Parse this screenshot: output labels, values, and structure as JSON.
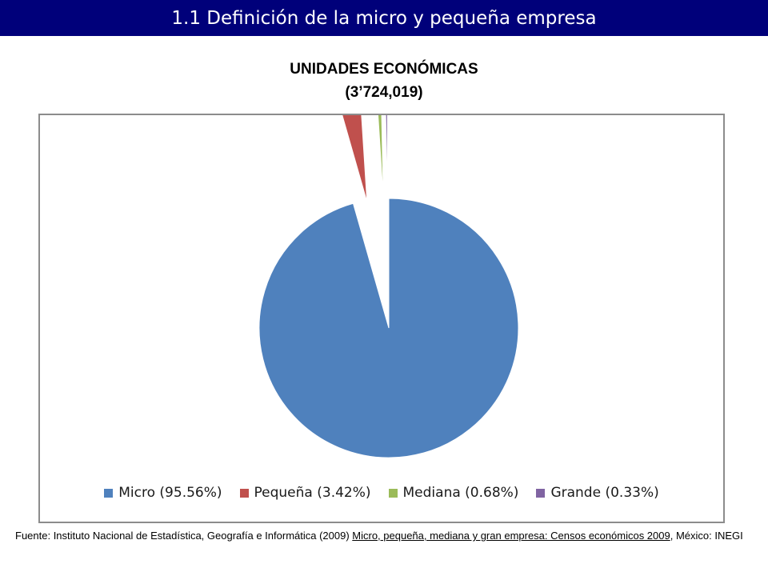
{
  "header": {
    "title": "1.1 Definición de la micro y pequeña empresa"
  },
  "chart_data": {
    "type": "pie",
    "title": "UNIDADES ECONÓMICAS",
    "subtitle": "(3’724,019)",
    "categories": [
      "Micro",
      "Pequeña",
      "Mediana",
      "Grande"
    ],
    "values": [
      95.56,
      3.42,
      0.68,
      0.33
    ],
    "unit": "%",
    "colors": [
      "#4f81bd",
      "#c0504d",
      "#9bbb59",
      "#8064a2"
    ],
    "legend_labels": [
      "Micro (95.56%)",
      "Pequeña (3.42%)",
      "Mediana (0.68%)",
      "Grande (0.33%)"
    ],
    "legend_position": "bottom",
    "exploded": true
  },
  "footnote": {
    "prefix": "Fuente: Instituto Nacional de Estadística, Geografía e Informática (2009) ",
    "title": "Micro, pequeña, mediana y gran empresa: Censos económicos 2009",
    "suffix": ", México: INEGI"
  }
}
